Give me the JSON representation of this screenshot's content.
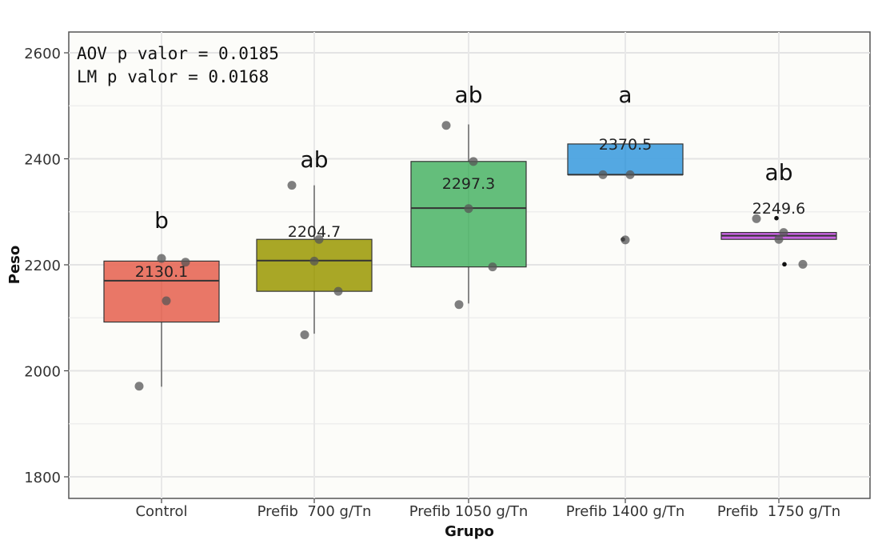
{
  "chart_data": {
    "type": "box",
    "xlabel": "Grupo",
    "ylabel": "Peso",
    "ylim": [
      1770,
      2640
    ],
    "yticks": [
      1800,
      2000,
      2200,
      2400,
      2600
    ],
    "grid": true,
    "annotations": [
      "AOV p valor = 0.0185",
      "LM p valor = 0.0168"
    ],
    "groups": [
      {
        "category": "Control",
        "color": "#e8705f",
        "box": {
          "min": 1970,
          "q1": 2092,
          "median": 2170,
          "q3": 2207,
          "max": 2207
        },
        "mean_label": "2130.1",
        "mean": 2130.1,
        "letter": "b",
        "points": [
          1971,
          2132,
          2212,
          2205
        ]
      },
      {
        "category": "Prefib  700 g/Tn",
        "color": "#a4a21a",
        "box": {
          "min": 2070,
          "q1": 2150,
          "median": 2208,
          "q3": 2248,
          "max": 2350
        },
        "mean_label": "2204.7",
        "mean": 2204.7,
        "letter": "ab",
        "points": [
          2350,
          2248,
          2207,
          2150,
          2068
        ]
      },
      {
        "category": "Prefib 1050 g/Tn",
        "color": "#5cba74",
        "box": {
          "min": 2127,
          "q1": 2196,
          "median": 2307,
          "q3": 2395,
          "max": 2465
        },
        "mean_label": "2297.3",
        "mean": 2297.3,
        "letter": "ab",
        "points": [
          2463,
          2395,
          2306,
          2196,
          2125
        ]
      },
      {
        "category": "Prefib 1400 g/Tn",
        "color": "#4ba3e0",
        "box": {
          "min": 2370,
          "q1": 2370,
          "median": 2370,
          "q3": 2428,
          "max": 2428
        },
        "mean_label": "2370.5",
        "mean": 2370.5,
        "letter": "a",
        "points": [
          2370,
          2370,
          2247
        ],
        "outliers": [
          2248
        ]
      },
      {
        "category": "Prefib  1750 g/Tn",
        "color": "#c65ce0",
        "box": {
          "min": 2248,
          "q1": 2248,
          "median": 2255,
          "q3": 2261,
          "max": 2261
        },
        "mean_label": "2249.6",
        "mean": 2249.6,
        "letter": "ab",
        "points": [
          2287,
          2261,
          2248,
          2201
        ],
        "outliers": [
          2288,
          2201
        ]
      }
    ]
  }
}
